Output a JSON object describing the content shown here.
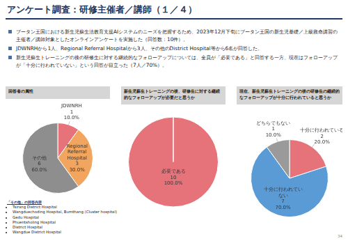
{
  "header": {
    "title": "アンケート調査：研修主催者／講師（１／４）"
  },
  "bullets": [
    "ブータン王国における新生児蘇生法教育支援AIシステムのニーズを把握するため、2023年12月下旬にブータン王国の新生児基礎／上級救命講習の主催者／講師対象としたオンラインアンケートを実施した（回答数：10件）。",
    "JDWNRHから1人、Regional Referral Hospitalから3人、その他のDistrict Hospital等から6名が回答した。",
    "新生児蘇生トレーニングの後の研修生に対する継続的なフォローアップについては、全員が「必要である」と回答する一方、現在はフォローアップが「十分に行われていない」という回答が目立った（7人／70%）。"
  ],
  "chart_data": [
    {
      "type": "pie",
      "title": "回答者の属性",
      "categories": [
        "JDWNRH",
        "Regional Referral Hospital",
        "その他"
      ],
      "values": [
        1,
        3,
        6
      ],
      "percent_labels": [
        "10.0%",
        "30.0%",
        "60.0%"
      ],
      "colors": [
        "#e6737a",
        "#f2a55f",
        "#8e8e8e"
      ],
      "data_labels": true
    },
    {
      "type": "pie",
      "title": "新生児蘇生トレーニングの後、研修生に対する継続的なフォローアップが必要だと思うか",
      "categories": [
        "必要である"
      ],
      "values": [
        10
      ],
      "percent_labels": [
        "100.0%"
      ],
      "colors": [
        "#e6737a"
      ],
      "data_labels": true
    },
    {
      "type": "pie",
      "title": "現在、新生児蘇生トレーニングの後の研修生の継続的なフォローアップが十分に行われていると思うか",
      "categories": [
        "十分に行われている",
        "十分に行われていない",
        "どちらでもない"
      ],
      "values": [
        2,
        7,
        1
      ],
      "percent_labels": [
        "20.0%",
        "70.0%",
        "10.0%"
      ],
      "colors": [
        "#e6737a",
        "#5b9bd5",
        "#9a9a9a"
      ],
      "data_labels": true
    }
  ],
  "footnote": {
    "title": "「その他」の回答内容",
    "items": [
      "Tsirang District Hospital",
      "Wangduechoding Hospital, Bumthang (Cluster hospital)",
      "Gedu Hospital",
      "Phuentsholing Hospital",
      "District Hospital",
      "Wangdue District Hospital"
    ]
  },
  "page_number": 34
}
